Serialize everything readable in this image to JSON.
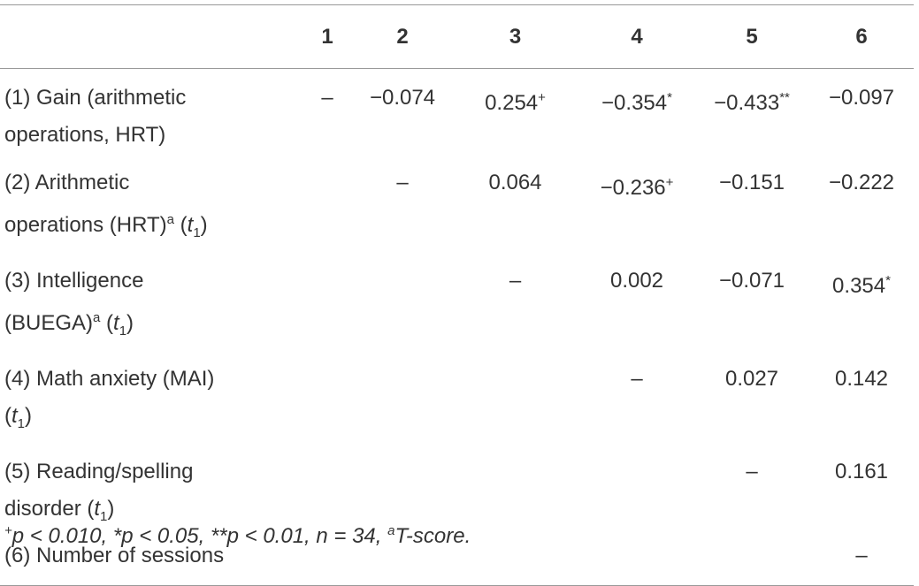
{
  "table": {
    "header": [
      "1",
      "2",
      "3",
      "4",
      "5",
      "6"
    ],
    "rows": [
      {
        "label": [
          [
            {
              "text": "(1) Gain (arithmetic"
            }
          ],
          [
            {
              "text": "operations, HRT)"
            }
          ]
        ],
        "cells": [
          {
            "value": "–"
          },
          {
            "value": "−0.074"
          },
          {
            "value": "0.254",
            "mark": "+"
          },
          {
            "value": "−0.354",
            "mark": "*"
          },
          {
            "value": "−0.433",
            "mark": "**"
          },
          {
            "value": "−0.097"
          }
        ]
      },
      {
        "label": [
          [
            {
              "text": "(2) Arithmetic"
            }
          ],
          [
            {
              "text": "operations (HRT)"
            },
            {
              "sup": "a"
            },
            {
              "text": " ("
            },
            {
              "italic": "t"
            },
            {
              "sub": "1"
            },
            {
              "text": ")"
            }
          ]
        ],
        "cells": [
          null,
          {
            "value": "–"
          },
          {
            "value": "0.064"
          },
          {
            "value": "−0.236",
            "mark": "+"
          },
          {
            "value": "−0.151"
          },
          {
            "value": "−0.222"
          }
        ]
      },
      {
        "label": [
          [
            {
              "text": "(3) Intelligence"
            }
          ],
          [
            {
              "text": "(BUEGA)"
            },
            {
              "sup": "a"
            },
            {
              "text": " ("
            },
            {
              "italic": "t"
            },
            {
              "sub": "1"
            },
            {
              "text": ")"
            }
          ]
        ],
        "cells": [
          null,
          null,
          {
            "value": "–"
          },
          {
            "value": "0.002"
          },
          {
            "value": "−0.071"
          },
          {
            "value": "0.354",
            "mark": "*"
          }
        ]
      },
      {
        "label": [
          [
            {
              "text": "(4) Math anxiety (MAI)"
            }
          ],
          [
            {
              "text": "("
            },
            {
              "italic": "t"
            },
            {
              "sub": "1"
            },
            {
              "text": ")"
            }
          ]
        ],
        "cells": [
          null,
          null,
          null,
          {
            "value": "–"
          },
          {
            "value": "0.027"
          },
          {
            "value": "0.142"
          }
        ]
      },
      {
        "label": [
          [
            {
              "text": "(5) Reading/spelling"
            }
          ],
          [
            {
              "text": "disorder ("
            },
            {
              "italic": "t"
            },
            {
              "sub": "1"
            },
            {
              "text": ")"
            }
          ]
        ],
        "cells": [
          null,
          null,
          null,
          null,
          {
            "value": "–"
          },
          {
            "value": "0.161"
          }
        ]
      },
      {
        "label": [
          [
            {
              "text": "(6) Number of sessions"
            }
          ]
        ],
        "cells": [
          null,
          null,
          null,
          null,
          null,
          {
            "value": "–"
          }
        ]
      }
    ],
    "footnote": [
      {
        "sup": "+"
      },
      {
        "text": "p < 0.010, *p < 0.05, **p < 0.01, n = 34, "
      },
      {
        "sup": "a"
      },
      {
        "text": "T-score."
      }
    ]
  }
}
